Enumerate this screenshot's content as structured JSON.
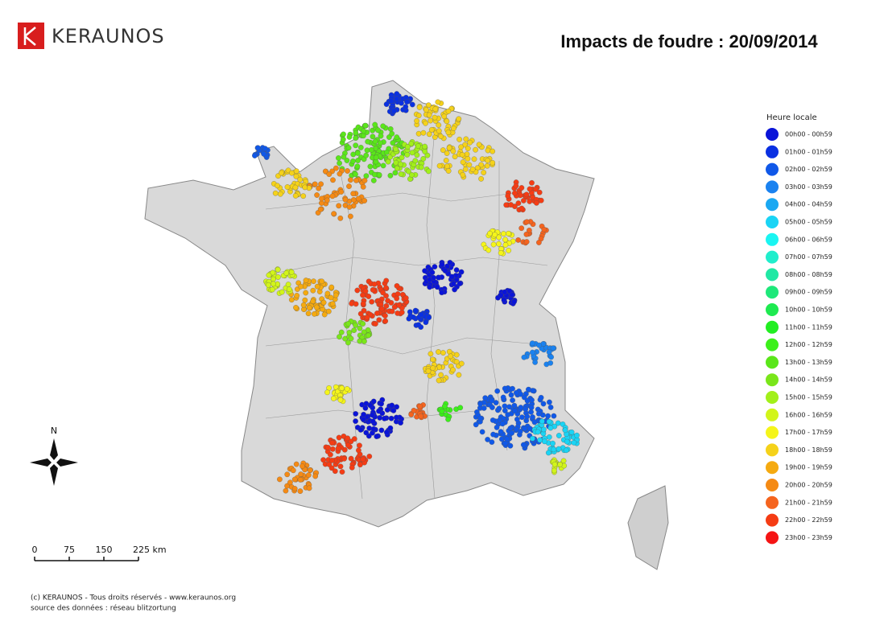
{
  "header": {
    "logo": "KERAUNOS",
    "title": "Impacts de foudre : 20/09/2014"
  },
  "legend": {
    "title": "Heure locale",
    "items": [
      {
        "label": "00h00 - 00h59",
        "color": "#0a14d8"
      },
      {
        "label": "01h00 - 01h59",
        "color": "#0a30e2"
      },
      {
        "label": "02h00 - 02h59",
        "color": "#1058e8"
      },
      {
        "label": "03h00 - 03h59",
        "color": "#1a82f0"
      },
      {
        "label": "04h00 - 04h59",
        "color": "#1aa8f2"
      },
      {
        "label": "05h00 - 05h59",
        "color": "#1ad4f5"
      },
      {
        "label": "06h00 - 06h59",
        "color": "#1af5f2"
      },
      {
        "label": "07h00 - 07h59",
        "color": "#20eecc"
      },
      {
        "label": "08h00 - 08h59",
        "color": "#20e8a4"
      },
      {
        "label": "09h00 - 09h59",
        "color": "#1ee87a"
      },
      {
        "label": "10h00 - 10h59",
        "color": "#1eea50"
      },
      {
        "label": "11h00 - 11h59",
        "color": "#22ee22"
      },
      {
        "label": "12h00 - 12h59",
        "color": "#3cf01a"
      },
      {
        "label": "13h00 - 13h59",
        "color": "#5ae61a"
      },
      {
        "label": "14h00 - 14h59",
        "color": "#7ae61a"
      },
      {
        "label": "15h00 - 15h59",
        "color": "#a2f01a"
      },
      {
        "label": "16h00 - 16h59",
        "color": "#d2f51a"
      },
      {
        "label": "17h00 - 17h59",
        "color": "#f5f51a"
      },
      {
        "label": "18h00 - 18h59",
        "color": "#f5d21a"
      },
      {
        "label": "19h00 - 19h59",
        "color": "#f5aa10"
      },
      {
        "label": "20h00 - 20h59",
        "color": "#f58a14"
      },
      {
        "label": "21h00 - 21h59",
        "color": "#f5641e"
      },
      {
        "label": "22h00 - 22h59",
        "color": "#f53c14"
      },
      {
        "label": "23h00 - 23h59",
        "color": "#f51414"
      }
    ]
  },
  "compass": "N",
  "scale_bar": {
    "ticks": [
      0,
      75,
      150,
      {
        "value": 225,
        "label": "225 km"
      }
    ]
  },
  "footer": {
    "copyright": "(c) KERAUNOS - Tous droits réservés - www.keraunos.org",
    "source": "source des données : réseau blitzortung"
  }
}
